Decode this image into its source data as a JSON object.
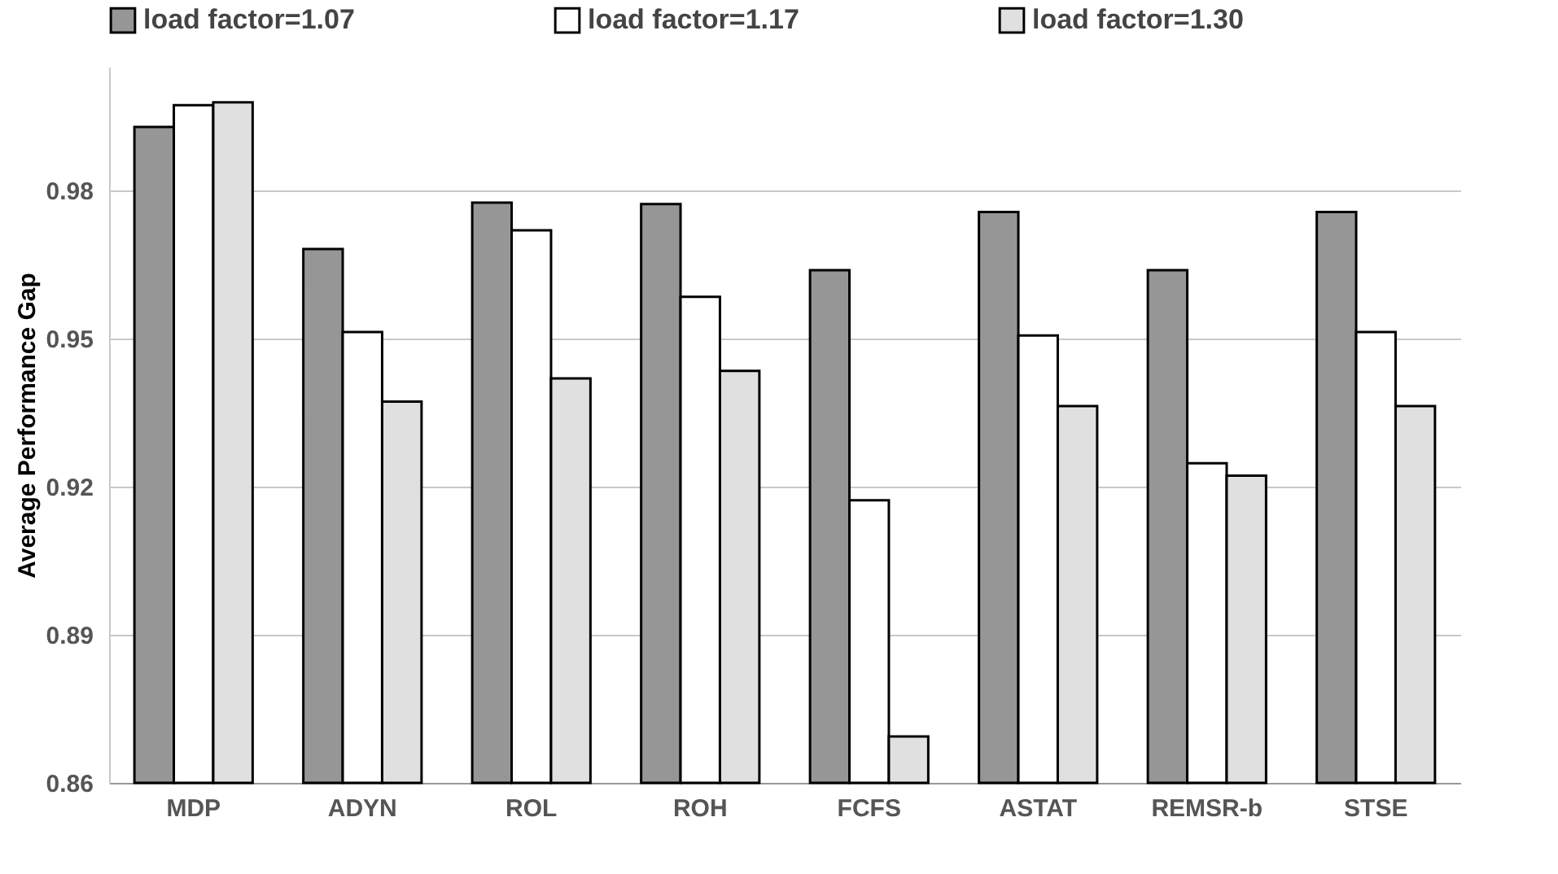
{
  "chart_data": {
    "type": "bar",
    "ylabel": "Average Performance Gap",
    "categories": [
      "MDP",
      "ADYN",
      "ROL",
      "ROH",
      "FCFS",
      "ASTAT",
      "REMSR-b",
      "STSE"
    ],
    "series": [
      {
        "name": "load factor=1.07",
        "color": "#969696",
        "values": [
          0.9928,
          0.9681,
          0.9775,
          0.9772,
          0.9638,
          0.9756,
          0.9638,
          0.9756
        ]
      },
      {
        "name": "load factor=1.17",
        "color": "#ffffff",
        "values": [
          0.9972,
          0.9513,
          0.9719,
          0.9584,
          0.9172,
          0.9506,
          0.9247,
          0.9513
        ]
      },
      {
        "name": "load factor=1.30",
        "color": "#e0e0e0",
        "values": [
          0.9978,
          0.9372,
          0.9419,
          0.9434,
          0.8694,
          0.9363,
          0.9222,
          0.9363
        ]
      }
    ],
    "ylim": [
      0.86,
      1.005
    ],
    "yticks": [
      0.86,
      0.89,
      0.92,
      0.95,
      0.98
    ],
    "grid": "y",
    "legend": "top"
  }
}
